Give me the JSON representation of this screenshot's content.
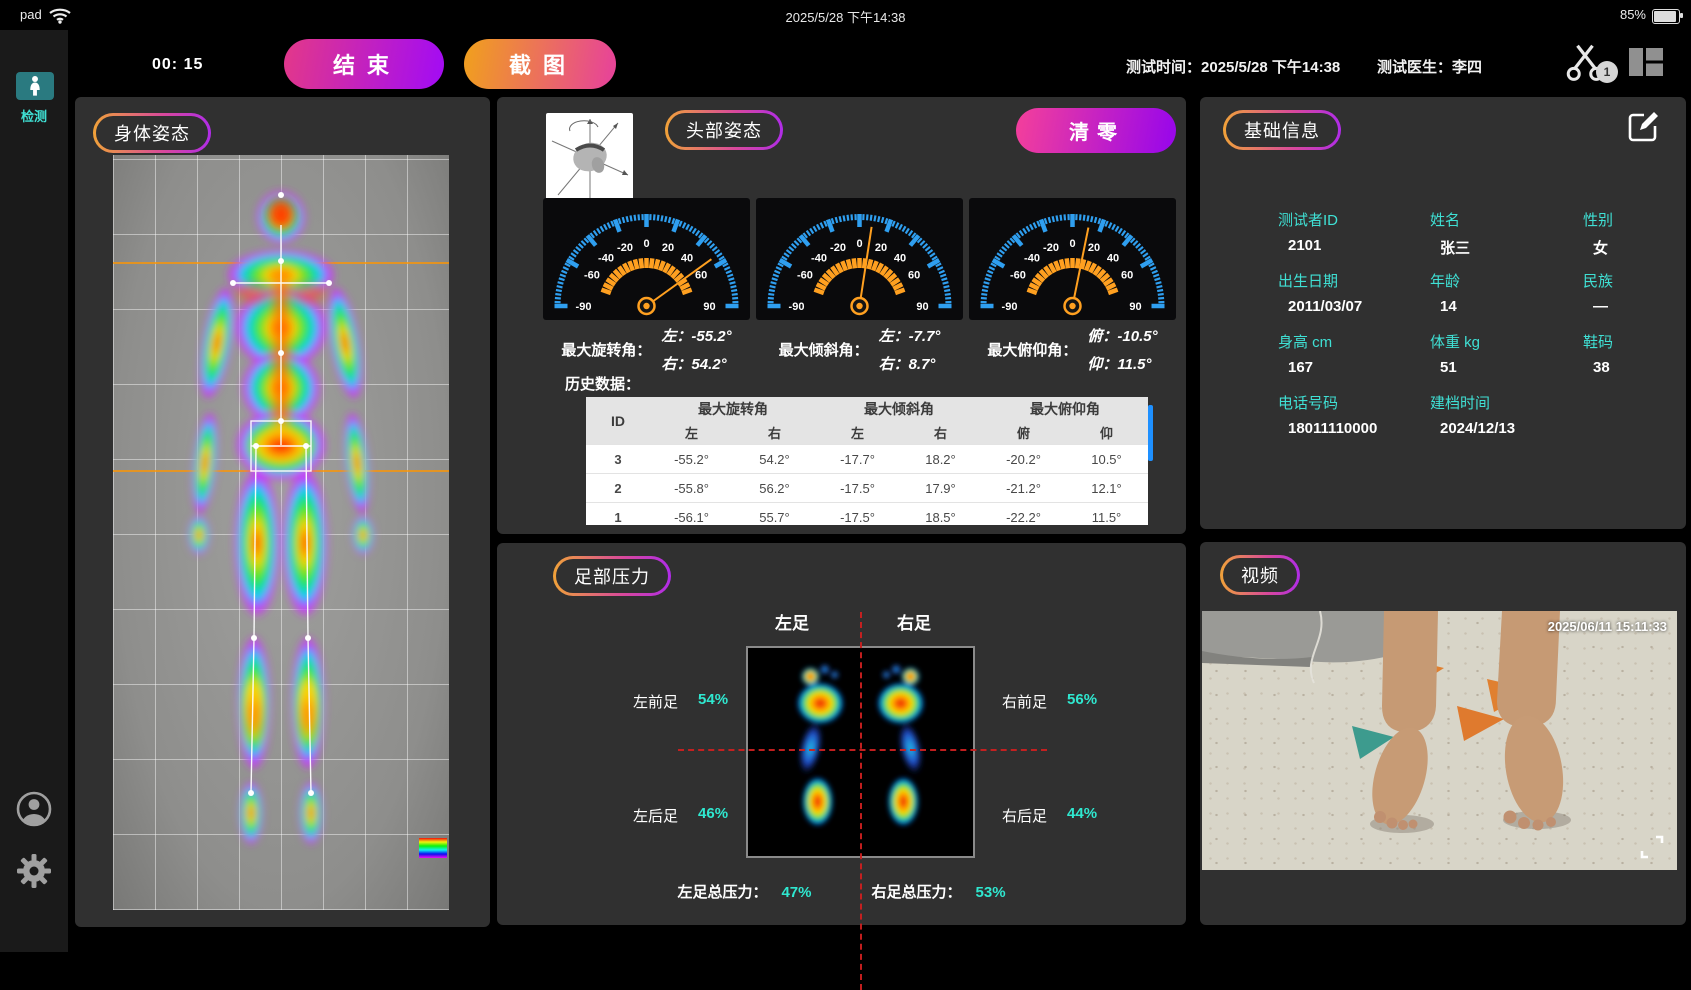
{
  "colors": {
    "accent_cyan": "#3fe0d4",
    "value_cyan": "#2fe8d0",
    "gauge_blue": "#2f9ff0",
    "gauge_orange": "#ffa020",
    "pill_gradient": [
      "#f0a239",
      "#d8489c",
      "#b02ce8"
    ],
    "end_button_gradient": [
      "#e0368e",
      "#a50df0"
    ],
    "screenshot_button_gradient": [
      "#f09c22",
      "#e74596"
    ],
    "reset_button_gradient": [
      "#f03d9e",
      "#9b08e8"
    ],
    "detect_teal": "#2a7a80",
    "scrollbar_blue": "#1e90ff",
    "crosshair_red": "#cc2020"
  },
  "status_bar": {
    "device": "pad",
    "time": "2025/5/28 下午14:38",
    "battery": "85%"
  },
  "sidebar": {
    "detect_label": "检测"
  },
  "toolbar": {
    "timer": "00: 15",
    "end_button": "结束",
    "screenshot_button": "截图",
    "test_time_label": "测试时间：",
    "test_time": "2025/5/28 下午14:38",
    "doctor_label": "测试医生：",
    "doctor_name": "李四",
    "clip_badge": "1"
  },
  "body_posture": {
    "title": "身体姿态"
  },
  "head_posture": {
    "title": "头部姿态",
    "reset_button": "清零",
    "gauge_tick_labels": [
      "-90",
      "-60",
      "-40",
      "-20",
      "0",
      "20",
      "40",
      "60",
      "90"
    ],
    "gauges": [
      {
        "value": 54.2
      },
      {
        "value": 8.7
      },
      {
        "value": 11.5
      }
    ],
    "max_angles": [
      {
        "label": "最大旋转角：",
        "line1": "左：-55.2°",
        "line2": "右：54.2°"
      },
      {
        "label": "最大倾斜角：",
        "line1": "左：-7.7°",
        "line2": "右：8.7°"
      },
      {
        "label": "最大俯仰角：",
        "line1": "俯：-10.5°",
        "line2": "仰：11.5°"
      }
    ],
    "history_label": "历史数据：",
    "history": {
      "id_header": "ID",
      "groups": [
        "最大旋转角",
        "最大倾斜角",
        "最大俯仰角"
      ],
      "sub_headers": [
        "左",
        "右",
        "左",
        "右",
        "俯",
        "仰"
      ],
      "rows": [
        {
          "id": "3",
          "values": [
            "-55.2°",
            "54.2°",
            "-17.7°",
            "18.2°",
            "-20.2°",
            "10.5°"
          ]
        },
        {
          "id": "2",
          "values": [
            "-55.8°",
            "56.2°",
            "-17.5°",
            "17.9°",
            "-21.2°",
            "12.1°"
          ]
        },
        {
          "id": "1",
          "values": [
            "-56.1°",
            "55.7°",
            "-17.5°",
            "18.5°",
            "-22.2°",
            "11.5°"
          ]
        }
      ]
    }
  },
  "basic_info": {
    "title": "基础信息",
    "fields": [
      {
        "label": "测试者ID",
        "value": "2101"
      },
      {
        "label": "姓名",
        "value": "张三"
      },
      {
        "label": "性别",
        "value": "女"
      },
      {
        "label": "出生日期",
        "value": "2011/03/07"
      },
      {
        "label": "年龄",
        "value": "14"
      },
      {
        "label": "民族",
        "value": "—"
      },
      {
        "label": "身高 cm",
        "value": "167"
      },
      {
        "label": "体重 kg",
        "value": "51"
      },
      {
        "label": "鞋码",
        "value": "38"
      },
      {
        "label": "电话号码",
        "value": "18011110000"
      },
      {
        "label": "建档时间",
        "value": "2024/12/13"
      }
    ]
  },
  "foot_pressure": {
    "title": "足部压力",
    "left_foot_label": "左足",
    "right_foot_label": "右足",
    "quadrants": [
      {
        "label": "左前足",
        "value": "54%"
      },
      {
        "label": "右前足",
        "value": "56%"
      },
      {
        "label": "左后足",
        "value": "46%"
      },
      {
        "label": "右后足",
        "value": "44%"
      }
    ],
    "totals": [
      {
        "label": "左足总压力：",
        "value": "47%"
      },
      {
        "label": "右足总压力：",
        "value": "53%"
      }
    ]
  },
  "video": {
    "title": "视频",
    "timestamp": "2025/06/11 15:11:33"
  }
}
